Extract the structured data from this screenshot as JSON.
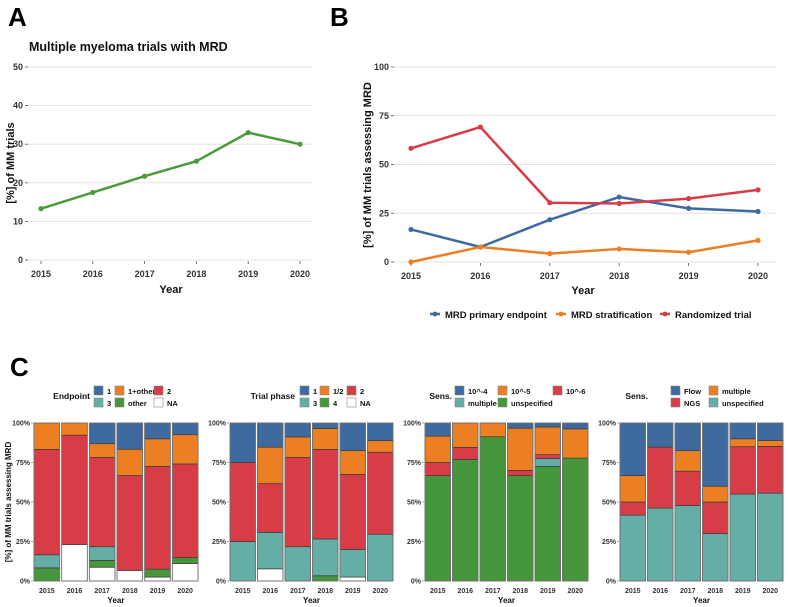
{
  "colors": {
    "blue": "#3e6aa0",
    "orange": "#ec7f22",
    "red": "#d83c47",
    "teal": "#64aea5",
    "green": "#46963c",
    "white": "#ffffff",
    "lineA": "#4b9b3c"
  },
  "chart_data": [
    {
      "panel": "A",
      "type": "line",
      "title": "Multiple myeloma trials with MRD",
      "xlabel": "Year",
      "ylabel": "[%] of MM trials",
      "x": [
        "2015",
        "2016",
        "2017",
        "2018",
        "2019",
        "2020"
      ],
      "ylim": [
        0,
        50
      ],
      "yticks": [
        "0",
        "10",
        "20",
        "30",
        "40",
        "50"
      ],
      "grid": true,
      "series": [
        {
          "name": "MM trials with MRD",
          "color_key": "lineA",
          "values": [
            13.3,
            17.5,
            21.7,
            25.6,
            33.0,
            30.0
          ]
        }
      ]
    },
    {
      "panel": "B",
      "type": "line",
      "title": "",
      "xlabel": "Year",
      "ylabel": "[%] of MM trials assessing MRD",
      "x": [
        "2015",
        "2016",
        "2017",
        "2018",
        "2019",
        "2020"
      ],
      "ylim": [
        0,
        100
      ],
      "yticks": [
        "0",
        "25",
        "50",
        "75",
        "100"
      ],
      "grid": true,
      "legend_position": "bottom",
      "series": [
        {
          "name": "MRD primary endpoint",
          "color_key": "blue",
          "values": [
            16.7,
            7.7,
            21.7,
            33.3,
            27.5,
            25.9
          ]
        },
        {
          "name": "MRD stratification",
          "color_key": "orange",
          "values": [
            0.0,
            7.7,
            4.3,
            6.7,
            5.0,
            11.1
          ]
        },
        {
          "name": "Randomized trial",
          "color_key": "red",
          "values": [
            58.3,
            69.2,
            30.4,
            30.0,
            32.5,
            37.0
          ]
        }
      ]
    },
    {
      "panel": "C1",
      "type": "bar",
      "stacked": true,
      "legend_title": "Endpoint",
      "xlabel": "Year",
      "ylabel": "[%] of MM trials assessing MRD",
      "categories": [
        "2015",
        "2016",
        "2017",
        "2018",
        "2019",
        "2020"
      ],
      "yticks": [
        "0%",
        "25%",
        "50%",
        "75%",
        "100%"
      ],
      "ylim": [
        0,
        100
      ],
      "legend": [
        {
          "label": "1",
          "color_key": "blue"
        },
        {
          "label": "1+other",
          "color_key": "orange"
        },
        {
          "label": "2",
          "color_key": "red"
        },
        {
          "label": "3",
          "color_key": "teal"
        },
        {
          "label": "other",
          "color_key": "green"
        },
        {
          "label": "NA",
          "color_key": "white"
        }
      ],
      "stack_order_bottom_to_top": [
        "NA",
        "other",
        "3",
        "2",
        "1+other",
        "1"
      ],
      "series": [
        {
          "name": "1",
          "color_key": "blue",
          "values": [
            0,
            0,
            13.0,
            16.7,
            10.0,
            7.4
          ]
        },
        {
          "name": "1+other",
          "color_key": "orange",
          "values": [
            16.7,
            7.7,
            8.7,
            16.7,
            17.5,
            18.5
          ]
        },
        {
          "name": "2",
          "color_key": "red",
          "values": [
            66.7,
            69.2,
            56.5,
            60.0,
            65.0,
            59.3
          ]
        },
        {
          "name": "3",
          "color_key": "teal",
          "values": [
            8.3,
            0,
            8.7,
            0,
            0,
            0
          ]
        },
        {
          "name": "other",
          "color_key": "green",
          "values": [
            8.3,
            0,
            4.3,
            0,
            5.0,
            3.7
          ]
        },
        {
          "name": "NA",
          "color_key": "white",
          "values": [
            0,
            23.1,
            8.7,
            6.7,
            2.5,
            11.1
          ]
        }
      ]
    },
    {
      "panel": "C2",
      "type": "bar",
      "stacked": true,
      "legend_title": "Trial phase",
      "xlabel": "Year",
      "categories": [
        "2015",
        "2016",
        "2017",
        "2018",
        "2019",
        "2020"
      ],
      "yticks": [
        "0%",
        "25%",
        "50%",
        "75%",
        "100%"
      ],
      "ylim": [
        0,
        100
      ],
      "legend": [
        {
          "label": "1",
          "color_key": "blue"
        },
        {
          "label": "1/2",
          "color_key": "orange"
        },
        {
          "label": "2",
          "color_key": "red"
        },
        {
          "label": "3",
          "color_key": "teal"
        },
        {
          "label": "4",
          "color_key": "green"
        },
        {
          "label": "NA",
          "color_key": "white"
        }
      ],
      "series": [
        {
          "name": "1",
          "color_key": "blue",
          "values": [
            25.0,
            15.4,
            8.7,
            3.3,
            17.5,
            11.1
          ]
        },
        {
          "name": "1/2",
          "color_key": "orange",
          "values": [
            0,
            23.1,
            13.0,
            13.3,
            15.0,
            7.4
          ]
        },
        {
          "name": "2",
          "color_key": "red",
          "values": [
            50.0,
            30.8,
            56.5,
            56.7,
            47.5,
            51.9
          ]
        },
        {
          "name": "3",
          "color_key": "teal",
          "values": [
            25.0,
            23.1,
            21.7,
            23.3,
            17.5,
            29.6
          ]
        },
        {
          "name": "4",
          "color_key": "green",
          "values": [
            0,
            0,
            0,
            3.3,
            0,
            0
          ]
        },
        {
          "name": "NA",
          "color_key": "white",
          "values": [
            0,
            7.7,
            0,
            0,
            2.5,
            0
          ]
        }
      ]
    },
    {
      "panel": "C3",
      "type": "bar",
      "stacked": true,
      "legend_title": "Sens.",
      "xlabel": "Year",
      "categories": [
        "2015",
        "2016",
        "2017",
        "2018",
        "2019",
        "2020"
      ],
      "yticks": [
        "0%",
        "25%",
        "50%",
        "75%",
        "100%"
      ],
      "ylim": [
        0,
        100
      ],
      "legend": [
        {
          "label": "10^-4",
          "color_key": "blue"
        },
        {
          "label": "10^-5",
          "color_key": "orange"
        },
        {
          "label": "10^-6",
          "color_key": "red"
        },
        {
          "label": "multiple",
          "color_key": "teal"
        },
        {
          "label": "unspecified",
          "color_key": "green"
        }
      ],
      "series": [
        {
          "name": "10^-4",
          "color_key": "blue",
          "values": [
            8.3,
            0,
            0,
            3.3,
            2.5,
            3.7
          ]
        },
        {
          "name": "10^-5",
          "color_key": "orange",
          "values": [
            16.7,
            15.4,
            8.7,
            26.7,
            17.5,
            18.5
          ]
        },
        {
          "name": "10^-6",
          "color_key": "red",
          "values": [
            8.3,
            7.7,
            0,
            3.3,
            2.5,
            0
          ]
        },
        {
          "name": "multiple",
          "color_key": "teal",
          "values": [
            0,
            0,
            0,
            0,
            5.0,
            0
          ]
        },
        {
          "name": "unspecified",
          "color_key": "green",
          "values": [
            66.7,
            76.9,
            91.3,
            66.7,
            72.5,
            77.8
          ]
        }
      ]
    },
    {
      "panel": "C4",
      "type": "bar",
      "stacked": true,
      "legend_title": "Sens.",
      "xlabel": "Year",
      "categories": [
        "2015",
        "2016",
        "2017",
        "2018",
        "2019",
        "2020"
      ],
      "yticks": [
        "0%",
        "25%",
        "50%",
        "75%",
        "100%"
      ],
      "ylim": [
        0,
        100
      ],
      "legend": [
        {
          "label": "Flow",
          "color_key": "blue"
        },
        {
          "label": "multiple",
          "color_key": "orange"
        },
        {
          "label": "NGS",
          "color_key": "red"
        },
        {
          "label": "unspecified",
          "color_key": "teal"
        }
      ],
      "series": [
        {
          "name": "Flow",
          "color_key": "blue",
          "values": [
            33.3,
            15.4,
            17.4,
            40.0,
            10.0,
            11.1
          ]
        },
        {
          "name": "multiple",
          "color_key": "orange",
          "values": [
            16.7,
            0,
            13.0,
            10.0,
            5.0,
            3.7
          ]
        },
        {
          "name": "NGS",
          "color_key": "red",
          "values": [
            8.3,
            38.5,
            21.7,
            20.0,
            30.0,
            29.6
          ]
        },
        {
          "name": "unspecified",
          "color_key": "teal",
          "values": [
            41.7,
            46.2,
            47.8,
            30.0,
            55.0,
            55.6
          ]
        }
      ]
    }
  ],
  "panel_letters": [
    "A",
    "B",
    "C"
  ]
}
